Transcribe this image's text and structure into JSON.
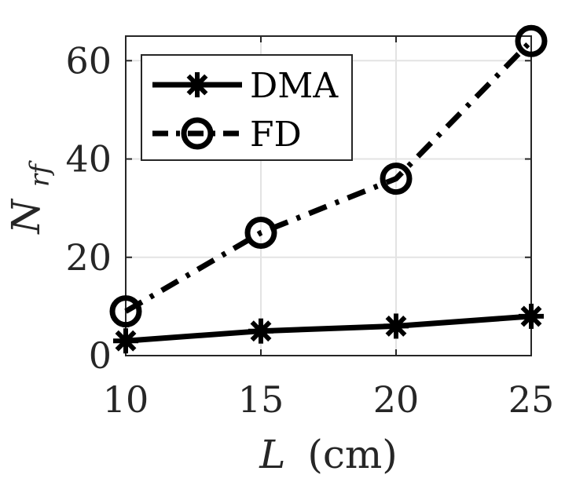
{
  "chart_data": {
    "type": "line",
    "x": [
      10,
      15,
      20,
      25
    ],
    "xticks": [
      10,
      15,
      20,
      25
    ],
    "yticks": [
      0,
      20,
      40,
      60
    ],
    "xlim": [
      10,
      25
    ],
    "ylim": [
      0,
      65
    ],
    "xlabel_var": "L",
    "xlabel_unit": "(cm)",
    "ylabel_main": "N",
    "ylabel_sub": "rf",
    "grid": true,
    "legend_position": "top-left",
    "series": [
      {
        "name": "DMA",
        "values": [
          3,
          5,
          6,
          8
        ],
        "marker": "asterisk",
        "line": "solid",
        "color": "#000000"
      },
      {
        "name": "FD",
        "values": [
          9,
          25,
          36,
          64
        ],
        "marker": "circle",
        "line": "dash-dot",
        "color": "#000000"
      }
    ]
  }
}
